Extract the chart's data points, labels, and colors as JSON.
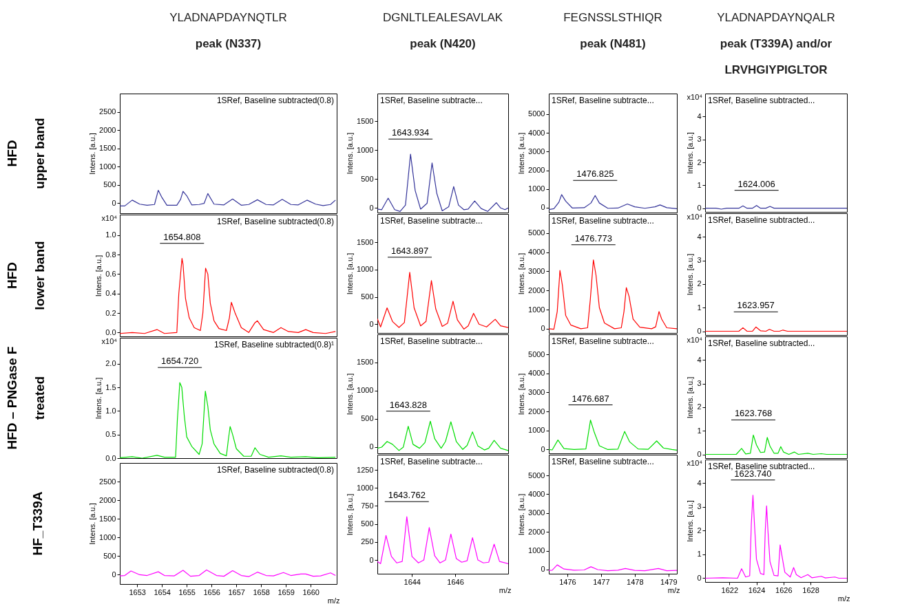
{
  "chart_data": [
    {
      "type": "line",
      "title": "YLADNAPDAYNQTLR\npeak (N337)",
      "subtitle": "HFD\nupper band",
      "ylabel": "Intens. [a.u.]",
      "tick_labels": "y",
      "color": "#333399",
      "xlim": [
        1652.3,
        1661.05
      ],
      "ylim": [
        -280,
        3000
      ],
      "yticks": [
        0,
        500,
        1000,
        1500,
        2000,
        2500
      ],
      "annotations": [
        "1SRef, Baseline subtracted(0.8)"
      ],
      "x": [
        1652.3,
        1652.5,
        1652.8,
        1653.1,
        1653.4,
        1653.7,
        1653.85,
        1654.0,
        1654.2,
        1654.6,
        1654.75,
        1654.85,
        1655.0,
        1655.2,
        1655.5,
        1655.7,
        1655.85,
        1656.1,
        1656.5,
        1656.85,
        1657.2,
        1657.5,
        1657.85,
        1658.2,
        1658.5,
        1658.85,
        1659.2,
        1659.5,
        1659.85,
        1660.2,
        1660.5,
        1660.8,
        1661.0
      ],
      "values": [
        -80,
        -80,
        80,
        -30,
        -60,
        -40,
        350,
        150,
        -60,
        -60,
        100,
        320,
        200,
        -50,
        -40,
        -10,
        260,
        -30,
        -50,
        110,
        -60,
        -40,
        90,
        -40,
        -50,
        100,
        -40,
        -50,
        80,
        -30,
        -70,
        -40,
        80
      ]
    },
    {
      "type": "line",
      "title": "DGNLTLEALESAVLAK\npeak (N420)",
      "ylabel": "Intens. [a.u.]",
      "tick_labels": "y",
      "color": "#333399",
      "xlim": [
        1642.4,
        1648.45
      ],
      "ylim": [
        -80,
        1980
      ],
      "yticks": [
        0,
        500,
        1000,
        1500
      ],
      "annotations": [
        "1SRef, Baseline subtracte...",
        {
          "text": "1643.934",
          "x": 1643.934,
          "y": 930
        }
      ],
      "x": [
        1642.4,
        1642.6,
        1642.9,
        1643.2,
        1643.45,
        1643.7,
        1643.934,
        1644.15,
        1644.4,
        1644.7,
        1644.93,
        1645.15,
        1645.4,
        1645.7,
        1645.93,
        1646.15,
        1646.4,
        1646.6,
        1646.9,
        1647.2,
        1647.5,
        1647.9,
        1648.1,
        1648.3,
        1648.45
      ],
      "values": [
        -20,
        -30,
        170,
        -30,
        -60,
        50,
        930,
        300,
        -20,
        80,
        780,
        250,
        -50,
        20,
        370,
        50,
        -30,
        -20,
        120,
        -10,
        -60,
        90,
        0,
        -30,
        0
      ]
    },
    {
      "type": "line",
      "title": "FEGNSSLSTHIQR\npeak (N481)",
      "ylabel": "Intens. [a.u.]",
      "tick_labels": "y",
      "color": "#333399",
      "xlim": [
        1475.45,
        1479.25
      ],
      "ylim": [
        -260,
        6100
      ],
      "yticks": [
        0,
        1000,
        2000,
        3000,
        4000,
        5000
      ],
      "annotations": [
        "1SRef, Baseline subtracte...",
        {
          "text": "1476.825",
          "x": 1476.825,
          "y": 650
        }
      ],
      "x": [
        1475.45,
        1475.6,
        1475.75,
        1475.83,
        1475.95,
        1476.15,
        1476.5,
        1476.7,
        1476.825,
        1476.95,
        1477.2,
        1477.5,
        1477.78,
        1478.0,
        1478.3,
        1478.6,
        1478.75,
        1478.95,
        1479.25
      ],
      "values": [
        -100,
        -50,
        300,
        700,
        350,
        -20,
        0,
        250,
        650,
        250,
        -30,
        -20,
        200,
        50,
        -30,
        50,
        150,
        0,
        -50
      ]
    },
    {
      "type": "line",
      "title": "YLADNAPDAYNQALR\npeak (T339A) and/or\nLRVHGIYPIGLTOR",
      "ylabel": "Intens. [a.u.]",
      "tick_labels": "y",
      "color": "#333399",
      "xlim": [
        1620.2,
        1630.7
      ],
      "ylim": [
        -0.16,
        5
      ],
      "yticks": [
        0,
        1,
        2,
        3,
        4
      ],
      "annotations": [
        "1SRef, Baseline subtracted...",
        "x10⁴",
        {
          "text": "1624.006",
          "x": 1624.006,
          "y": 0.12
        }
      ],
      "x": [
        1620.2,
        1621.0,
        1621.4,
        1621.8,
        1622.7,
        1623.0,
        1623.3,
        1623.7,
        1624.006,
        1624.3,
        1624.7,
        1625.0,
        1625.3,
        1626,
        1627,
        1628,
        1629,
        1630.7
      ],
      "values": [
        0,
        0,
        -0.04,
        0,
        0,
        0.1,
        0,
        0,
        0.12,
        0,
        0,
        0.08,
        0,
        0,
        0,
        0,
        0,
        0
      ]
    },
    {
      "type": "line",
      "subtitle": "HFD\nlower band",
      "ylabel": "Intens. [a.u.]",
      "tick_labels": "y",
      "color": "#ff0000",
      "xlim": [
        1652.3,
        1661.05
      ],
      "ylim": [
        -0.04,
        1.21
      ],
      "yticks": [
        {
          "value": 0,
          "label": "0.0"
        },
        0.2,
        0.4,
        0.6,
        0.8,
        {
          "value": 1,
          "label": "1.0"
        }
      ],
      "annotations": [
        "1SRef, Baseline subtracted(0.8)",
        "x10⁴",
        {
          "text": "1654.808",
          "x": 1654.808,
          "y": 0.76
        }
      ],
      "x": [
        1652.3,
        1652.8,
        1653.3,
        1653.8,
        1654.1,
        1654.6,
        1654.68,
        1654.808,
        1654.85,
        1654.95,
        1655.1,
        1655.3,
        1655.55,
        1655.65,
        1655.76,
        1655.85,
        1655.95,
        1656.1,
        1656.3,
        1656.6,
        1656.72,
        1656.8,
        1656.95,
        1657.2,
        1657.5,
        1657.75,
        1657.85,
        1658.1,
        1658.5,
        1658.8,
        1659.1,
        1659.5,
        1659.8,
        1660.1,
        1660.6,
        1661.0
      ],
      "values": [
        -0.01,
        0,
        -0.01,
        0.03,
        -0.01,
        0,
        0.4,
        0.76,
        0.7,
        0.35,
        0.15,
        0.05,
        0.02,
        0.2,
        0.66,
        0.6,
        0.3,
        0.12,
        0.04,
        0.02,
        0.15,
        0.31,
        0.2,
        0.05,
        0,
        0.1,
        0.12,
        0.03,
        0,
        0.05,
        0.01,
        0,
        0.03,
        0,
        -0.01,
        0.01
      ]
    },
    {
      "type": "line",
      "ylabel": "Intens. [a.u.]",
      "tick_labels": "y",
      "color": "#ff0000",
      "xlim": [
        1642.4,
        1648.45
      ],
      "ylim": [
        -160,
        2020
      ],
      "yticks": [
        0,
        500,
        1000,
        1500
      ],
      "annotations": [
        "1SRef, Baseline subtracte...",
        {
          "text": "1643.897",
          "x": 1643.897,
          "y": 950
        }
      ],
      "x": [
        1642.4,
        1642.55,
        1642.85,
        1643.1,
        1643.4,
        1643.65,
        1643.897,
        1644.1,
        1644.4,
        1644.65,
        1644.9,
        1645.1,
        1645.4,
        1645.65,
        1645.9,
        1646.1,
        1646.4,
        1646.6,
        1646.85,
        1647.1,
        1647.45,
        1647.85,
        1648.1,
        1648.45
      ],
      "values": [
        100,
        -50,
        300,
        50,
        -60,
        30,
        950,
        300,
        -30,
        50,
        800,
        280,
        -40,
        20,
        420,
        80,
        -90,
        -30,
        200,
        0,
        -50,
        90,
        -30,
        -60
      ]
    },
    {
      "type": "line",
      "ylabel": "Intens. [a.u.]",
      "tick_labels": "y",
      "color": "#ff0000",
      "xlim": [
        1475.45,
        1479.25
      ],
      "ylim": [
        -220,
        6000
      ],
      "yticks": [
        0,
        1000,
        2000,
        3000,
        4000,
        5000
      ],
      "annotations": [
        "1SRef, Baseline subtracte...",
        {
          "text": "1476.773",
          "x": 1476.773,
          "y": 3600
        }
      ],
      "x": [
        1475.45,
        1475.6,
        1475.7,
        1475.78,
        1475.85,
        1475.95,
        1476.1,
        1476.4,
        1476.6,
        1476.68,
        1476.773,
        1476.85,
        1476.95,
        1477.1,
        1477.4,
        1477.6,
        1477.68,
        1477.75,
        1477.83,
        1477.95,
        1478.15,
        1478.5,
        1478.62,
        1478.72,
        1478.8,
        1478.95,
        1479.25
      ],
      "values": [
        0,
        -30,
        900,
        3050,
        2300,
        700,
        200,
        0,
        50,
        1500,
        3600,
        2800,
        1100,
        300,
        0,
        50,
        900,
        2150,
        1700,
        500,
        80,
        0,
        100,
        900,
        500,
        50,
        0
      ]
    },
    {
      "type": "line",
      "ylabel": "Intens. [a.u.]",
      "tick_labels": "y",
      "color": "#ff0000",
      "xlim": [
        1620.2,
        1630.7
      ],
      "ylim": [
        -0.16,
        5
      ],
      "yticks": [
        0,
        1,
        2,
        3,
        4
      ],
      "annotations": [
        "1SRef, Baseline subtracted...",
        "x10⁴",
        {
          "text": "1623.957",
          "x": 1623.957,
          "y": 0.18
        }
      ],
      "x": [
        1620.2,
        1622.7,
        1623.0,
        1623.3,
        1623.7,
        1623.957,
        1624.3,
        1624.7,
        1624.96,
        1625.3,
        1625.7,
        1625.96,
        1626.3,
        1630.7
      ],
      "values": [
        0,
        0,
        0.15,
        0,
        0,
        0.18,
        0.02,
        0,
        0.08,
        0,
        0,
        0.05,
        0,
        0
      ]
    },
    {
      "type": "line",
      "subtitle": "HFD – PNGase F\ntreated",
      "ylabel": "Intens. [a.u.]",
      "tick_labels": "y",
      "color": "#00dd00",
      "xlim": [
        1652.3,
        1661.05
      ],
      "ylim": [
        0,
        2.55
      ],
      "yticks": [
        {
          "value": 0,
          "label": "0.0"
        },
        0.5,
        {
          "value": 1,
          "label": "1.0"
        },
        1.5,
        {
          "value": 2,
          "label": "2.0"
        }
      ],
      "annotations": [
        "1SRef, Baseline subtracted(0.8)¹",
        "x10⁴",
        {
          "text": "1654.720",
          "x": 1654.72,
          "y": 1.6
        }
      ],
      "x": [
        1652.3,
        1652.8,
        1653.2,
        1653.8,
        1654.1,
        1654.55,
        1654.62,
        1654.72,
        1654.8,
        1654.9,
        1655.0,
        1655.2,
        1655.5,
        1655.62,
        1655.75,
        1655.85,
        1655.95,
        1656.1,
        1656.35,
        1656.6,
        1656.68,
        1656.75,
        1656.85,
        1657.0,
        1657.3,
        1657.6,
        1657.75,
        1657.95,
        1658.3,
        1658.8,
        1659.2,
        1659.8,
        1660.3,
        1661.0
      ],
      "values": [
        0.01,
        0.03,
        0,
        0.06,
        0.02,
        0.02,
        0.8,
        1.6,
        1.5,
        0.9,
        0.45,
        0.25,
        0.08,
        0.3,
        1.42,
        1.1,
        0.6,
        0.3,
        0.1,
        0.05,
        0.4,
        0.67,
        0.5,
        0.2,
        0.04,
        0.04,
        0.22,
        0.08,
        0.02,
        0.05,
        0.02,
        0.03,
        0.01,
        0.02
      ]
    },
    {
      "type": "line",
      "ylabel": "Intens. [a.u.]",
      "tick_labels": "y",
      "color": "#00dd00",
      "xlim": [
        1642.4,
        1648.45
      ],
      "ylim": [
        -110,
        2000
      ],
      "yticks": [
        0,
        500,
        1000,
        1500
      ],
      "annotations": [
        "1SRef, Baseline subtracte...",
        {
          "text": "1643.828",
          "x": 1643.828,
          "y": 370
        }
      ],
      "x": [
        1642.4,
        1642.6,
        1642.85,
        1643.1,
        1643.4,
        1643.6,
        1643.828,
        1644.05,
        1644.35,
        1644.6,
        1644.85,
        1645.05,
        1645.35,
        1645.55,
        1645.8,
        1646.05,
        1646.35,
        1646.55,
        1646.8,
        1647.05,
        1647.35,
        1647.55,
        1647.8,
        1648.1,
        1648.45
      ],
      "values": [
        -20,
        0,
        100,
        50,
        -60,
        0,
        370,
        50,
        -20,
        80,
        460,
        150,
        -20,
        100,
        450,
        100,
        -40,
        30,
        270,
        20,
        -50,
        -20,
        120,
        -20,
        -60
      ]
    },
    {
      "type": "line",
      "ylabel": "Intens. [a.u.]",
      "tick_labels": "y",
      "color": "#00dd00",
      "xlim": [
        1475.45,
        1479.25
      ],
      "ylim": [
        -200,
        6050
      ],
      "yticks": [
        0,
        1000,
        2000,
        3000,
        4000,
        5000
      ],
      "annotations": [
        "1SRef, Baseline subtracte...",
        {
          "text": "1476.687",
          "x": 1476.687,
          "y": 1550
        }
      ],
      "x": [
        1475.45,
        1475.55,
        1475.72,
        1475.9,
        1476.2,
        1476.55,
        1476.687,
        1476.8,
        1476.95,
        1477.2,
        1477.5,
        1477.7,
        1477.85,
        1478.1,
        1478.4,
        1478.65,
        1478.85,
        1479.1,
        1479.25
      ],
      "values": [
        0,
        -20,
        500,
        50,
        0,
        30,
        1550,
        900,
        200,
        0,
        20,
        950,
        400,
        30,
        10,
        450,
        80,
        0,
        -30
      ]
    },
    {
      "type": "line",
      "ylabel": "Intens. [a.u.]",
      "tick_labels": "y",
      "color": "#00dd00",
      "xlim": [
        1620.2,
        1630.7
      ],
      "ylim": [
        -0.16,
        5
      ],
      "yticks": [
        0,
        1,
        2,
        3,
        4
      ],
      "annotations": [
        "1SRef, Baseline subtracted...",
        "x10⁴",
        {
          "text": "1623.768",
          "x": 1623.768,
          "y": 0.82
        }
      ],
      "x": [
        1620.2,
        1622.5,
        1622.9,
        1623.2,
        1623.55,
        1623.768,
        1624.0,
        1624.3,
        1624.6,
        1624.8,
        1625.0,
        1625.3,
        1625.6,
        1625.8,
        1626.0,
        1626.4,
        1626.8,
        1627.1,
        1627.8,
        1628.2,
        1628.8,
        1629.2,
        1630.7
      ],
      "values": [
        0,
        0,
        0.25,
        0.02,
        0.05,
        0.82,
        0.4,
        0.08,
        0.1,
        0.72,
        0.35,
        0.05,
        0.05,
        0.33,
        0.1,
        0,
        0.1,
        0,
        0.05,
        0,
        0.03,
        0,
        0
      ]
    },
    {
      "type": "line",
      "subtitle": "HF_T339A",
      "xlabel": "m/z",
      "ylabel": "Intens. [a.u.]",
      "color": "#ff00ff",
      "xlim": [
        1652.3,
        1661.05
      ],
      "xticks": [
        1653,
        1654,
        1655,
        1656,
        1657,
        1658,
        1659,
        1660
      ],
      "ylim": [
        -250,
        3000
      ],
      "yticks": [
        0,
        500,
        1000,
        1500,
        2000,
        2500
      ],
      "annotations": [
        "1SRef, Baseline subtracted(0.8)"
      ],
      "x": [
        1652.3,
        1652.5,
        1652.75,
        1653.1,
        1653.4,
        1653.85,
        1654.1,
        1654.5,
        1654.85,
        1655.15,
        1655.5,
        1655.8,
        1656.2,
        1656.5,
        1656.85,
        1657.2,
        1657.5,
        1657.85,
        1658.2,
        1658.5,
        1658.9,
        1659.2,
        1659.6,
        1659.8,
        1660.1,
        1660.4,
        1660.8,
        1661.0
      ],
      "values": [
        -30,
        -20,
        100,
        0,
        -20,
        80,
        -20,
        -30,
        120,
        -40,
        -20,
        130,
        -20,
        -40,
        110,
        -20,
        -50,
        70,
        -20,
        -30,
        60,
        -20,
        20,
        20,
        -40,
        -30,
        50,
        -20
      ]
    },
    {
      "type": "line",
      "xlabel": "m/z",
      "ylabel": "Intens. [a.u.]",
      "color": "#ff00ff",
      "xlim": [
        1642.4,
        1648.45
      ],
      "xticks": [
        1644,
        1646
      ],
      "ylim": [
        -190,
        1460
      ],
      "yticks": [
        0,
        250,
        500,
        750,
        1000,
        1250
      ],
      "annotations": [
        "1SRef, Baseline subtracte...",
        {
          "text": "1643.762",
          "x": 1643.762,
          "y": 600
        }
      ],
      "x": [
        1642.4,
        1642.55,
        1642.8,
        1643.05,
        1643.3,
        1643.55,
        1643.762,
        1644.0,
        1644.3,
        1644.55,
        1644.8,
        1645.05,
        1645.3,
        1645.55,
        1645.8,
        1646.05,
        1646.3,
        1646.55,
        1646.8,
        1647.05,
        1647.3,
        1647.55,
        1647.8,
        1648.05,
        1648.45
      ],
      "values": [
        -20,
        -50,
        340,
        50,
        -40,
        -20,
        600,
        50,
        -40,
        0,
        450,
        60,
        -40,
        0,
        360,
        20,
        -30,
        -10,
        310,
        0,
        -40,
        -30,
        220,
        -20,
        -50
      ]
    },
    {
      "type": "line",
      "xlabel": "m/z",
      "ylabel": "Intens. [a.u.]",
      "color": "#ff00ff",
      "xlim": [
        1475.45,
        1479.25
      ],
      "xticks": [
        1476,
        1477,
        1478,
        1479
      ],
      "ylim": [
        -220,
        6100
      ],
      "yticks": [
        0,
        1000,
        2000,
        3000,
        4000,
        5000
      ],
      "annotations": [
        "1SRef, Baseline subtracte..."
      ],
      "x": [
        1475.45,
        1475.55,
        1475.7,
        1475.9,
        1476.2,
        1476.5,
        1476.7,
        1476.9,
        1477.2,
        1477.5,
        1477.72,
        1478.0,
        1478.3,
        1478.7,
        1478.95,
        1479.25
      ],
      "values": [
        -40,
        -30,
        250,
        30,
        -30,
        -20,
        150,
        0,
        -60,
        -30,
        60,
        -40,
        -60,
        60,
        -60,
        -40
      ]
    },
    {
      "type": "line",
      "xlabel": "m/z",
      "ylabel": "Intens. [a.u.]",
      "color": "#ff00ff",
      "xlim": [
        1620.2,
        1630.7
      ],
      "xticks": [
        1622,
        1624,
        1626,
        1628
      ],
      "ylim": [
        -0.16,
        5
      ],
      "yticks": [
        0,
        1,
        2,
        3,
        4
      ],
      "annotations": [
        "1SRef, Baseline subtracted...",
        "x10⁴",
        {
          "text": "1623.740",
          "x": 1623.74,
          "y": 3.5
        }
      ],
      "x": [
        1620.2,
        1621.5,
        1622.6,
        1622.9,
        1623.2,
        1623.5,
        1623.62,
        1623.74,
        1623.85,
        1624.0,
        1624.3,
        1624.55,
        1624.65,
        1624.75,
        1624.85,
        1625.0,
        1625.3,
        1625.6,
        1625.75,
        1625.9,
        1626.1,
        1626.5,
        1626.75,
        1626.95,
        1627.3,
        1627.8,
        1628.1,
        1628.8,
        1629.1,
        1629.8,
        1630.1,
        1630.7
      ],
      "values": [
        0,
        0.02,
        0,
        0.4,
        0.05,
        0.1,
        2.3,
        3.5,
        2.3,
        0.8,
        0.2,
        0.15,
        2.0,
        3.05,
        2.0,
        0.7,
        0.12,
        0.1,
        1.4,
        0.9,
        0.25,
        0.05,
        0.45,
        0.15,
        0.02,
        0.15,
        0.02,
        0.08,
        0.01,
        0.05,
        0,
        0
      ]
    }
  ]
}
